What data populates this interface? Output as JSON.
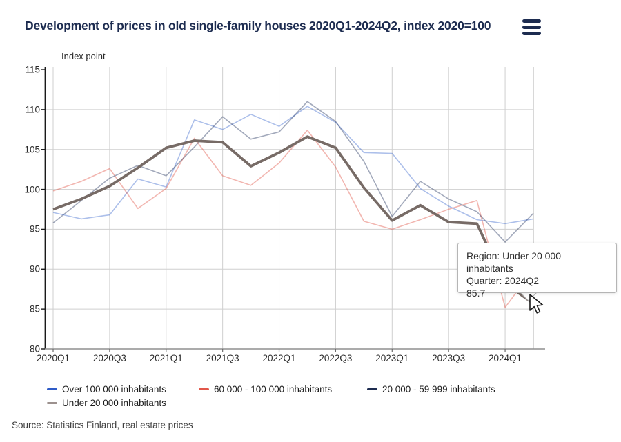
{
  "header": {
    "title": "Development of prices in old single-family houses 2020Q1-2024Q2, index 2020=100"
  },
  "menu": {
    "icon": "hamburger-menu-icon"
  },
  "chart_data": {
    "type": "line",
    "title": "Development of prices in old single-family houses 2020Q1-2024Q2, index 2020=100",
    "xlabel": "",
    "ylabel": "Index point",
    "ylim": [
      80,
      115
    ],
    "y_ticks": [
      80,
      85,
      90,
      95,
      100,
      105,
      110,
      115
    ],
    "x_tick_labels": [
      "2020Q1",
      "2020Q3",
      "2021Q1",
      "2021Q3",
      "2022Q1",
      "2022Q3",
      "2023Q1",
      "2023Q3",
      "2024Q1"
    ],
    "grid": true,
    "legend_position": "bottom",
    "categories": [
      "2020Q1",
      "2020Q2",
      "2020Q3",
      "2020Q4",
      "2021Q1",
      "2021Q2",
      "2021Q3",
      "2021Q4",
      "2022Q1",
      "2022Q2",
      "2022Q3",
      "2022Q4",
      "2023Q1",
      "2023Q2",
      "2023Q3",
      "2023Q4",
      "2024Q1",
      "2024Q2"
    ],
    "series": [
      {
        "name": "Over 100 000 inhabitants",
        "color": "#2f5bc7",
        "line_color": "#3a66cc",
        "dimmed": true,
        "line_width": 1.6,
        "values": [
          97.1,
          96.3,
          96.8,
          101.3,
          100.3,
          108.7,
          107.5,
          109.4,
          107.9,
          110.4,
          108.4,
          104.6,
          104.5,
          100.1,
          97.9,
          96.2,
          95.7,
          96.3
        ]
      },
      {
        "name": "60 000 - 100 000 inhabitants",
        "color": "#e2574a",
        "line_color": "#e05243",
        "dimmed": true,
        "line_width": 1.6,
        "values": [
          99.8,
          101.0,
          102.6,
          97.6,
          100.1,
          106.4,
          101.7,
          100.5,
          103.3,
          107.4,
          102.8,
          96.0,
          95.0,
          96.2,
          97.5,
          98.6,
          85.2,
          90.0
        ]
      },
      {
        "name": "20 000 - 59 999 inhabitants",
        "color": "#1d2c50",
        "line_color": "#22335c",
        "dimmed": true,
        "line_width": 1.6,
        "values": [
          95.8,
          98.6,
          101.4,
          103.0,
          101.7,
          105.3,
          109.1,
          106.3,
          107.2,
          111.0,
          108.5,
          103.5,
          96.6,
          101.0,
          98.8,
          97.2,
          93.4,
          97.0
        ]
      },
      {
        "name": "Under 20 000 inhabitants",
        "color": "#9c918e",
        "line_color": "#776b66",
        "dimmed": false,
        "line_width": 3.8,
        "values": [
          97.5,
          98.8,
          100.4,
          102.7,
          105.2,
          106.1,
          105.9,
          102.9,
          104.6,
          106.6,
          105.2,
          100.2,
          96.1,
          98.0,
          95.9,
          95.7,
          88.2,
          85.7
        ]
      }
    ]
  },
  "legend": {
    "items": [
      {
        "label": "Over 100 000 inhabitants",
        "color": "#2f5bc7"
      },
      {
        "label": "60 000 - 100 000 inhabitants",
        "color": "#e2574a"
      },
      {
        "label": "20 000 - 59 999 inhabitants",
        "color": "#1d2c50"
      },
      {
        "label": "Under 20 000 inhabitants",
        "color": "#9c918e"
      }
    ]
  },
  "tooltip": {
    "region_line": "Region: Under 20 000 inhabitants",
    "quarter_line": "Quarter: 2024Q2",
    "value": "85.7"
  },
  "source": {
    "text": "Source: Statistics Finland, real estate prices"
  },
  "colors": {
    "title_navy": "#1d2c50",
    "gridline": "#cfcfcf",
    "y_axis": "#1a1a1a",
    "x_axis": "#8f8f8f",
    "highlight_line": "#776b66"
  }
}
